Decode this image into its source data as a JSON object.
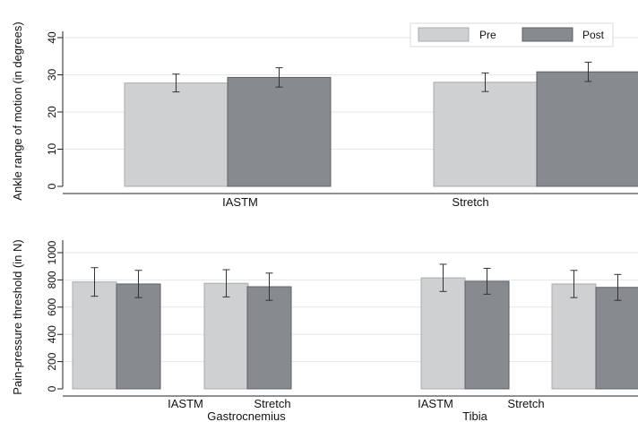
{
  "colors": {
    "pre": "#cfd0d2",
    "pre_stroke": "#a9abad",
    "post": "#878a8e",
    "post_stroke": "#5d6064",
    "axis": "#222222",
    "grid": "#e6e6e6",
    "error": "#333333"
  },
  "chart_data": [
    {
      "type": "bar",
      "id": "rom",
      "ylabel": "Ankle range of motion (in degrees)",
      "ylim": [
        0,
        40
      ],
      "yticks": [
        0,
        10,
        20,
        30,
        40
      ],
      "grid": true,
      "legend": "top-right",
      "categories": [
        "IASTM",
        "Stretch"
      ],
      "series": [
        {
          "name": "Pre",
          "values": [
            27.8,
            28.0
          ],
          "error": [
            2.4,
            2.5
          ]
        },
        {
          "name": "Post",
          "values": [
            29.3,
            30.8
          ],
          "error": [
            2.6,
            2.6
          ]
        }
      ]
    },
    {
      "type": "bar",
      "id": "ppt",
      "ylabel": "Pain-pressure threshold (in N)",
      "ylim": [
        0,
        1000
      ],
      "yticks": [
        0,
        200,
        400,
        600,
        800,
        1000
      ],
      "grid": true,
      "groups": [
        "Gastrocnemius",
        "Tibia"
      ],
      "subcategories": [
        "IASTM",
        "Stretch"
      ],
      "series": [
        {
          "name": "Pre",
          "values": [
            785,
            775,
            815,
            770
          ],
          "error": [
            105,
            100,
            100,
            100
          ]
        },
        {
          "name": "Post",
          "values": [
            770,
            750,
            790,
            745
          ],
          "error": [
            100,
            100,
            95,
            95
          ]
        }
      ]
    }
  ]
}
